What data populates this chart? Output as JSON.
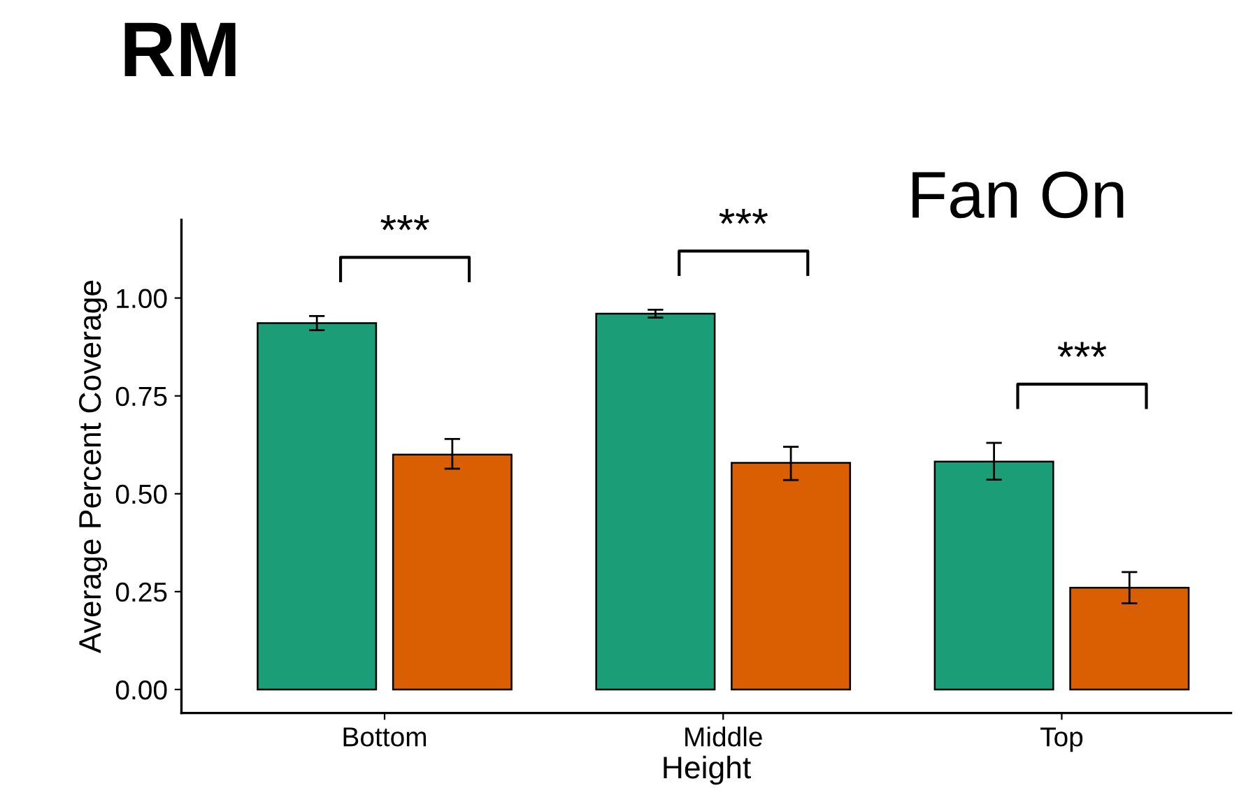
{
  "chart_data": {
    "type": "bar",
    "title": "RM",
    "subtitle": "Fan On",
    "xlabel": "Height",
    "ylabel": "Average Percent Coverage",
    "categories": [
      "Bottom",
      "Middle",
      "Top"
    ],
    "series": [
      {
        "color": "#1b9e77",
        "values": [
          0.936,
          0.96,
          0.582
        ],
        "errors": [
          0.018,
          0.01,
          [
            0.536,
            0.63
          ]
        ]
      },
      {
        "color": "#d95f02",
        "values": [
          0.6,
          0.579,
          0.26
        ],
        "errors": [
          [
            0.564,
            0.64
          ],
          [
            0.535,
            0.62
          ],
          [
            0.22,
            0.3
          ]
        ]
      }
    ],
    "ylim": [
      -0.06,
      1.2
    ],
    "yticks": [
      {
        "value": 0,
        "label": "0.00"
      },
      {
        "value": 0.25,
        "label": "0.25"
      },
      {
        "value": 0.5,
        "label": "0.50"
      },
      {
        "value": 0.75,
        "label": "0.75"
      },
      {
        "value": 1,
        "label": "1.00"
      }
    ],
    "annotations": [
      "***",
      "***",
      "***"
    ],
    "grid": false,
    "legend": false
  }
}
